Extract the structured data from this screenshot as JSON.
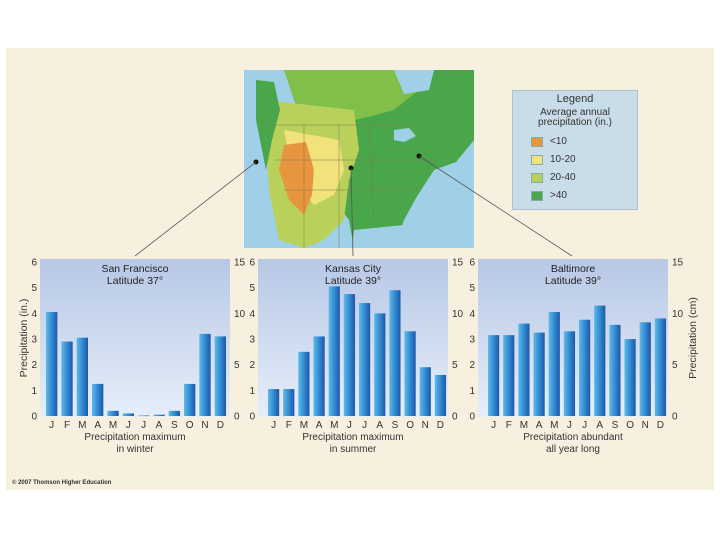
{
  "legend": {
    "title": "Legend",
    "subtitle": "Average annual precipitation (in.)",
    "items": [
      {
        "label": "<10",
        "color": "#e8963e"
      },
      {
        "label": "10-20",
        "color": "#f2e27c"
      },
      {
        "label": "20-40",
        "color": "#b9d15b"
      },
      {
        "label": ">40",
        "color": "#4aa64a"
      }
    ]
  },
  "axes": {
    "left_label": "Precipitation (in.)",
    "right_label": "Precipitation (cm)",
    "inch_ticks": [
      "0",
      "1",
      "2",
      "3",
      "4",
      "5",
      "6"
    ],
    "cm_ticks": [
      "0",
      "5",
      "10",
      "15"
    ]
  },
  "caption": "© 2007 Thomson Higher Education",
  "chart_data": [
    {
      "type": "bar",
      "title": "San Francisco",
      "subtitle": "Latitude 37°",
      "categories": [
        "J",
        "F",
        "M",
        "A",
        "M",
        "J",
        "J",
        "A",
        "S",
        "O",
        "N",
        "D"
      ],
      "values": [
        4.05,
        2.9,
        3.05,
        1.25,
        0.2,
        0.1,
        0.02,
        0.05,
        0.2,
        1.25,
        3.2,
        3.1
      ],
      "xlabel": "Precipitation maximum in winter",
      "ylabel": "Precipitation (in.)",
      "ylim": [
        0,
        6
      ],
      "y2lim": [
        0,
        15
      ]
    },
    {
      "type": "bar",
      "title": "Kansas City",
      "subtitle": "Latitude 39°",
      "categories": [
        "J",
        "F",
        "M",
        "A",
        "M",
        "J",
        "J",
        "A",
        "S",
        "O",
        "N",
        "D"
      ],
      "values": [
        1.05,
        1.05,
        2.5,
        3.1,
        5.05,
        4.75,
        4.4,
        4.0,
        4.9,
        3.3,
        1.9,
        1.6
      ],
      "xlabel": "Precipitation maximum in summer",
      "ylim": [
        0,
        6
      ],
      "y2lim": [
        0,
        15
      ]
    },
    {
      "type": "bar",
      "title": "Baltimore",
      "subtitle": "Latitude 39°",
      "categories": [
        "J",
        "F",
        "M",
        "A",
        "M",
        "J",
        "J",
        "A",
        "S",
        "O",
        "N",
        "D"
      ],
      "values": [
        3.15,
        3.15,
        3.6,
        3.25,
        4.05,
        3.3,
        3.75,
        4.3,
        3.55,
        3.0,
        3.65,
        3.8
      ],
      "xlabel": "Precipitation abundant all year long",
      "ylabel": "Precipitation (cm)",
      "ylim": [
        0,
        6
      ],
      "y2lim": [
        0,
        15
      ]
    }
  ]
}
